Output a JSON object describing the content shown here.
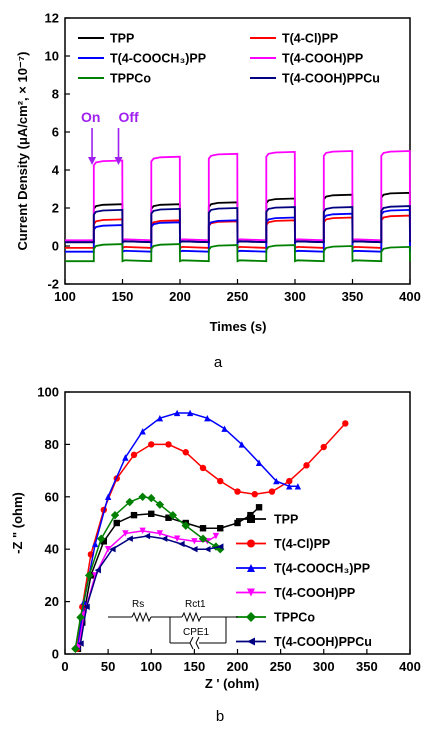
{
  "chart_data": [
    {
      "type": "line",
      "panel_label": "a",
      "xlabel": "Times (s)",
      "ylabel": "Current Density (μA/cm², × 10⁻⁷)",
      "xlim": [
        100,
        400
      ],
      "ylim": [
        -2,
        12
      ],
      "xticks": [
        "100",
        "150",
        "200",
        "250",
        "300",
        "350",
        "400"
      ],
      "yticks": [
        "-2",
        "0",
        "2",
        "4",
        "6",
        "8",
        "10",
        "12"
      ],
      "legend_placement": "top",
      "annotations": [
        {
          "text": "On",
          "x": 127,
          "color": "#a020f0"
        },
        {
          "text": "Off",
          "x": 150,
          "color": "#a020f0"
        }
      ],
      "light_on_periods": [
        [
          125,
          150
        ],
        [
          175,
          200
        ],
        [
          225,
          250
        ],
        [
          275,
          300
        ],
        [
          325,
          350
        ],
        [
          375,
          400
        ]
      ],
      "series": [
        {
          "name": "TPP",
          "color": "#000000",
          "on_values": [
            2.2,
            2.2,
            2.3,
            2.5,
            2.7,
            2.8
          ],
          "off_value": 0.2
        },
        {
          "name": "T(4-Cl)PP",
          "color": "#ff0000",
          "on_values": [
            1.4,
            1.35,
            1.3,
            1.35,
            1.5,
            1.6
          ],
          "off_value": -0.1
        },
        {
          "name": "T(4-COOCH3)PP",
          "color": "#0000ff",
          "on_values": [
            1.1,
            1.25,
            1.35,
            1.5,
            1.7,
            1.9
          ],
          "off_value": -0.3
        },
        {
          "name": "T(4-COOH)PP",
          "color": "#ff00ff",
          "on_values": [
            4.5,
            4.7,
            4.85,
            4.95,
            5.0,
            5.0
          ],
          "off_value": 0.3
        },
        {
          "name": "TPPCo",
          "color": "#008000",
          "on_values": [
            0.1,
            0.1,
            0.05,
            0.05,
            0.0,
            -0.05
          ],
          "off_value": -0.8
        },
        {
          "name": "T(4-COOH)PPCu",
          "color": "#000080",
          "on_values": [
            1.9,
            1.95,
            2.0,
            2.05,
            2.05,
            2.1
          ],
          "off_value": 0.2
        }
      ]
    },
    {
      "type": "scatter",
      "panel_label": "b",
      "xlabel": "Z ' (ohm)",
      "ylabel": "-Z \" (ohm)",
      "xlim": [
        0,
        400
      ],
      "ylim": [
        0,
        100
      ],
      "xticks": [
        "0",
        "50",
        "100",
        "150",
        "200",
        "250",
        "300",
        "350",
        "400"
      ],
      "yticks": [
        "0",
        "20",
        "40",
        "60",
        "80",
        "100"
      ],
      "legend_placement": "right",
      "circuit_labels": [
        "Rs",
        "Rct1",
        "CPE1"
      ],
      "series": [
        {
          "name": "TPP",
          "color": "#000000",
          "marker": "square",
          "x": [
            15,
            20,
            30,
            45,
            60,
            80,
            100,
            120,
            140,
            160,
            180,
            200,
            215,
            225
          ],
          "y": [
            2,
            12,
            30,
            43,
            50,
            53,
            53.5,
            52,
            50,
            48,
            48,
            50,
            53,
            56
          ]
        },
        {
          "name": "T(4-Cl)PP",
          "color": "#ff0000",
          "marker": "circle",
          "x": [
            14,
            20,
            30,
            45,
            60,
            80,
            100,
            120,
            140,
            160,
            180,
            200,
            220,
            240,
            260,
            280,
            300,
            325
          ],
          "y": [
            2,
            18,
            38,
            55,
            67,
            76,
            80,
            80,
            77,
            71,
            66,
            62,
            61,
            62,
            66,
            72,
            79,
            88
          ]
        },
        {
          "name": "T(4-COOCH3)PP",
          "color": "#0000ff",
          "marker": "triangle-up",
          "x": [
            15,
            22,
            35,
            50,
            70,
            90,
            110,
            130,
            145,
            165,
            185,
            205,
            225,
            245,
            260,
            270
          ],
          "y": [
            3,
            20,
            42,
            60,
            75,
            85,
            90,
            92,
            92,
            90,
            86,
            80,
            73,
            66,
            64,
            64
          ]
        },
        {
          "name": "T(4-COOH)PP",
          "color": "#ff00ff",
          "marker": "triangle-down",
          "x": [
            16,
            22,
            35,
            50,
            70,
            90,
            110,
            130,
            150,
            165,
            175
          ],
          "y": [
            3,
            15,
            30,
            40,
            46,
            47,
            46,
            44,
            43,
            43,
            45
          ]
        },
        {
          "name": "TPPCo",
          "color": "#008000",
          "marker": "diamond",
          "x": [
            12,
            18,
            28,
            42,
            58,
            75,
            90,
            100,
            110,
            125,
            140,
            160,
            175,
            180
          ],
          "y": [
            2,
            14,
            30,
            44,
            53,
            58,
            60,
            59.5,
            57,
            53,
            49,
            44,
            41,
            40
          ]
        },
        {
          "name": "T(4-COOH)PPCu",
          "color": "#000080",
          "marker": "triangle-left",
          "x": [
            18,
            25,
            38,
            55,
            75,
            95,
            115,
            135,
            150,
            165,
            180
          ],
          "y": [
            4,
            18,
            32,
            40,
            44,
            45,
            44,
            42,
            40,
            40,
            41
          ]
        }
      ]
    }
  ]
}
